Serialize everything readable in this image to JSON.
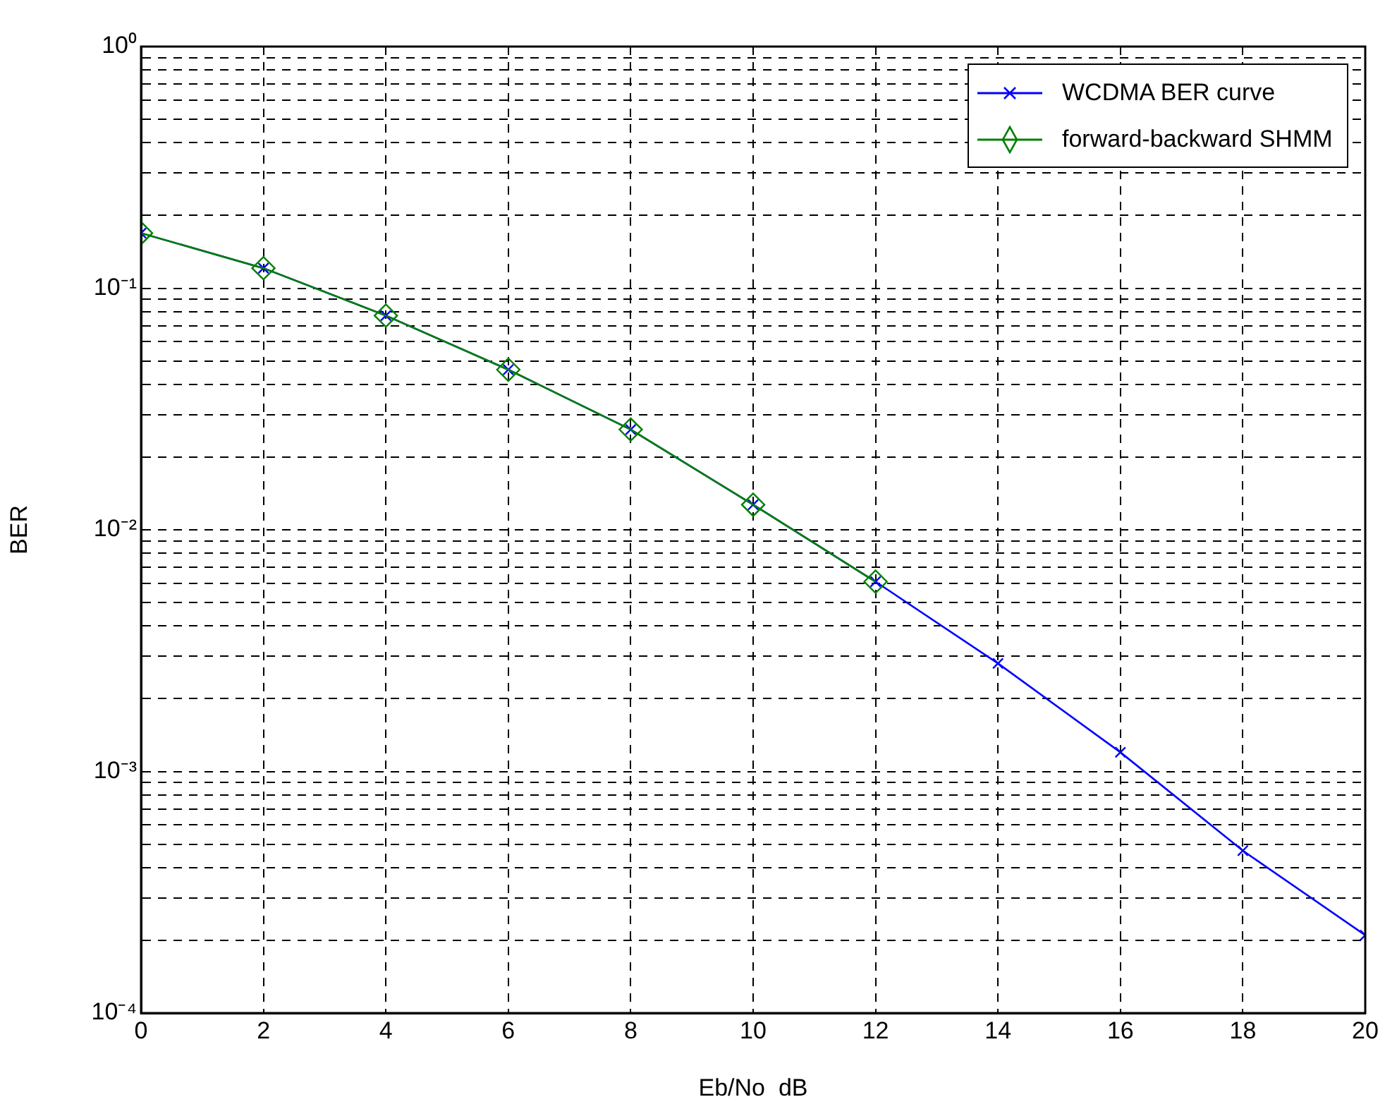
{
  "chart_data": {
    "type": "line",
    "xlabel": "Eb/No  dB",
    "ylabel": "BER",
    "log": "y",
    "grid": true,
    "legend": "top right",
    "line_style": "solid",
    "xlim": [
      0,
      20
    ],
    "xticks": [
      0,
      2,
      4,
      6,
      8,
      10,
      12,
      14,
      16,
      18,
      20
    ],
    "ylim": [
      0.0001,
      1
    ],
    "yticks": [
      {
        "value": 0.0001,
        "label": "10⁻⁴"
      },
      {
        "value": 0.0002,
        "label": null
      },
      {
        "value": 0.0003,
        "label": null
      },
      {
        "value": 0.0004,
        "label": null
      },
      {
        "value": 0.0005,
        "label": null
      },
      {
        "value": 0.0006,
        "label": null
      },
      {
        "value": 0.0007,
        "label": null
      },
      {
        "value": 0.0008,
        "label": null
      },
      {
        "value": 0.0009,
        "label": null
      },
      {
        "value": 0.001,
        "label": "10⁻³"
      },
      {
        "value": 0.002,
        "label": null
      },
      {
        "value": 0.003,
        "label": null
      },
      {
        "value": 0.004,
        "label": null
      },
      {
        "value": 0.005,
        "label": null
      },
      {
        "value": 0.006,
        "label": null
      },
      {
        "value": 0.007,
        "label": null
      },
      {
        "value": 0.008,
        "label": null
      },
      {
        "value": 0.009,
        "label": null
      },
      {
        "value": 0.01,
        "label": "10⁻²"
      },
      {
        "value": 0.02,
        "label": null
      },
      {
        "value": 0.03,
        "label": null
      },
      {
        "value": 0.04,
        "label": null
      },
      {
        "value": 0.05,
        "label": null
      },
      {
        "value": 0.06,
        "label": null
      },
      {
        "value": 0.07,
        "label": null
      },
      {
        "value": 0.08,
        "label": null
      },
      {
        "value": 0.09,
        "label": null
      },
      {
        "value": 0.1,
        "label": "10⁻¹"
      },
      {
        "value": 0.2,
        "label": null
      },
      {
        "value": 0.3,
        "label": null
      },
      {
        "value": 0.4,
        "label": null
      },
      {
        "value": 0.5,
        "label": null
      },
      {
        "value": 0.6,
        "label": null
      },
      {
        "value": 0.7,
        "label": null
      },
      {
        "value": 0.8,
        "label": null
      },
      {
        "value": 0.9,
        "label": null
      },
      {
        "value": 1,
        "label": "10⁰"
      }
    ],
    "series": [
      {
        "name": "WCDMA BER curve",
        "color": "#0000ff",
        "marker": "cross",
        "x": [
          0,
          2,
          4,
          6,
          8,
          10,
          12,
          14,
          16,
          18,
          20
        ],
        "values": [
          0.169,
          0.121,
          0.077,
          0.046,
          0.026,
          0.0127,
          0.0061,
          0.0028,
          0.0012,
          0.00047,
          0.00021
        ]
      },
      {
        "name": "forward-backward SHMM",
        "color": "#008000",
        "marker": "diamond",
        "x": [
          0,
          2,
          4,
          6,
          8,
          10,
          12
        ],
        "values": [
          0.169,
          0.121,
          0.077,
          0.046,
          0.026,
          0.0127,
          0.0061
        ]
      }
    ]
  }
}
